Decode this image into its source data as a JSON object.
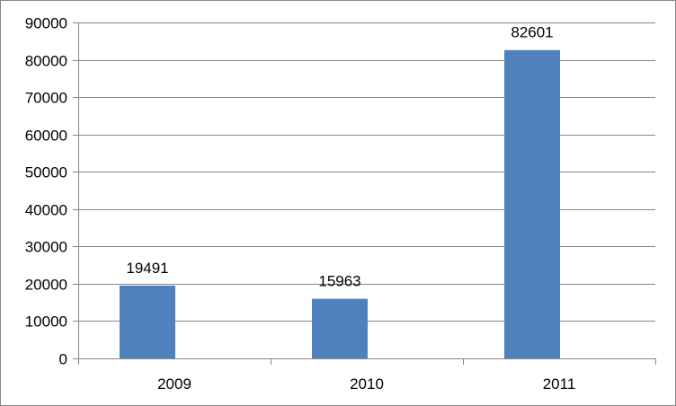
{
  "chart_data": {
    "type": "bar",
    "categories": [
      "2009",
      "2010",
      "2011"
    ],
    "values": [
      19491,
      15963,
      82601
    ],
    "data_labels": [
      "19491",
      "15963",
      "82601"
    ],
    "ylim": [
      0,
      90000
    ],
    "yticks": [
      0,
      10000,
      20000,
      30000,
      40000,
      50000,
      60000,
      70000,
      80000,
      90000
    ],
    "ytick_labels": [
      "0",
      "10000",
      "20000",
      "30000",
      "40000",
      "50000",
      "60000",
      "70000",
      "80000",
      "90000"
    ],
    "title": "",
    "xlabel": "",
    "ylabel": "",
    "grid": true,
    "legend": "none",
    "bar_color": "#4F81BD",
    "gridline_color": "#868686"
  }
}
